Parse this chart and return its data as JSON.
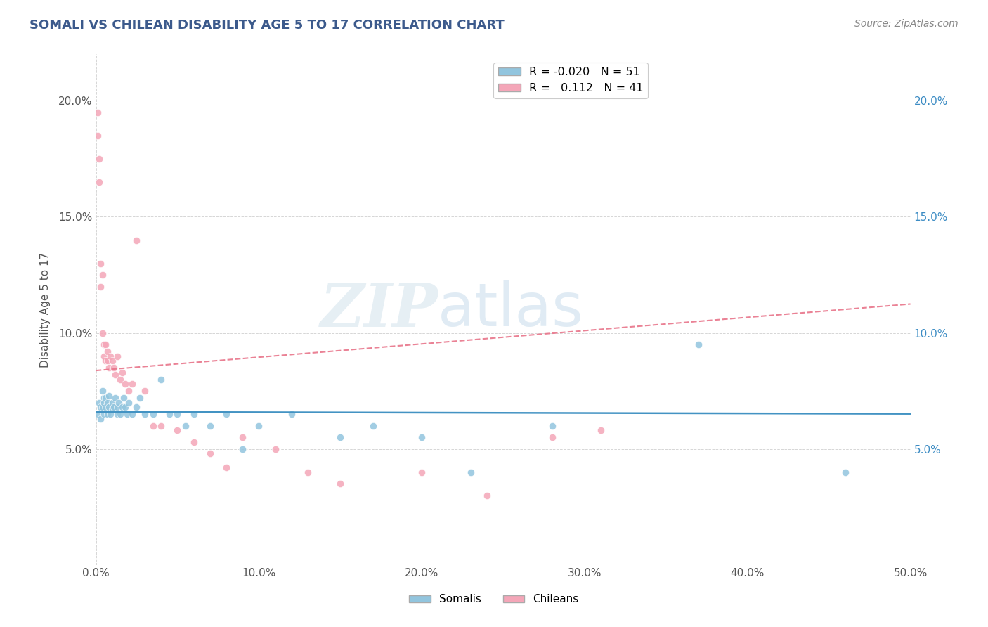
{
  "title": "SOMALI VS CHILEAN DISABILITY AGE 5 TO 17 CORRELATION CHART",
  "source_text": "Source: ZipAtlas.com",
  "ylabel": "Disability Age 5 to 17",
  "xlim": [
    0.0,
    0.5
  ],
  "ylim": [
    0.0,
    0.22
  ],
  "xticks": [
    0.0,
    0.1,
    0.2,
    0.3,
    0.4,
    0.5
  ],
  "xtick_labels": [
    "0.0%",
    "10.0%",
    "20.0%",
    "30.0%",
    "40.0%",
    "50.0%"
  ],
  "yticks": [
    0.0,
    0.05,
    0.1,
    0.15,
    0.2
  ],
  "ytick_labels_left": [
    "",
    "5.0%",
    "10.0%",
    "15.0%",
    "20.0%"
  ],
  "ytick_labels_right": [
    "",
    "5.0%",
    "10.0%",
    "15.0%",
    "20.0%"
  ],
  "somali_R": -0.02,
  "somali_N": 51,
  "chilean_R": 0.112,
  "chilean_N": 41,
  "somali_color": "#92c5de",
  "chilean_color": "#f4a6b8",
  "somali_line_color": "#4393c3",
  "chilean_line_color": "#e8748a",
  "watermark_zip": "ZIP",
  "watermark_atlas": "atlas",
  "background_color": "#ffffff",
  "grid_color": "#cccccc",
  "title_color": "#3c5a8c",
  "source_color": "#888888",
  "somali_x": [
    0.001,
    0.002,
    0.003,
    0.003,
    0.004,
    0.004,
    0.005,
    0.005,
    0.005,
    0.006,
    0.006,
    0.007,
    0.007,
    0.008,
    0.008,
    0.009,
    0.01,
    0.01,
    0.011,
    0.012,
    0.013,
    0.013,
    0.014,
    0.015,
    0.016,
    0.017,
    0.018,
    0.019,
    0.02,
    0.022,
    0.025,
    0.027,
    0.03,
    0.035,
    0.04,
    0.045,
    0.05,
    0.055,
    0.06,
    0.07,
    0.08,
    0.09,
    0.1,
    0.12,
    0.15,
    0.17,
    0.2,
    0.23,
    0.28,
    0.37,
    0.46
  ],
  "somali_y": [
    0.065,
    0.07,
    0.068,
    0.063,
    0.075,
    0.068,
    0.072,
    0.065,
    0.07,
    0.068,
    0.072,
    0.065,
    0.07,
    0.068,
    0.073,
    0.065,
    0.07,
    0.067,
    0.068,
    0.072,
    0.068,
    0.065,
    0.07,
    0.065,
    0.068,
    0.072,
    0.068,
    0.065,
    0.07,
    0.065,
    0.068,
    0.072,
    0.065,
    0.065,
    0.08,
    0.065,
    0.065,
    0.06,
    0.065,
    0.06,
    0.065,
    0.05,
    0.06,
    0.065,
    0.055,
    0.06,
    0.055,
    0.04,
    0.06,
    0.095,
    0.04
  ],
  "chilean_x": [
    0.001,
    0.001,
    0.002,
    0.002,
    0.003,
    0.003,
    0.004,
    0.004,
    0.005,
    0.005,
    0.006,
    0.006,
    0.007,
    0.007,
    0.008,
    0.009,
    0.01,
    0.011,
    0.012,
    0.013,
    0.015,
    0.016,
    0.018,
    0.02,
    0.022,
    0.025,
    0.03,
    0.035,
    0.04,
    0.05,
    0.06,
    0.07,
    0.08,
    0.09,
    0.11,
    0.13,
    0.15,
    0.2,
    0.24,
    0.28,
    0.31
  ],
  "chilean_y": [
    0.185,
    0.195,
    0.175,
    0.165,
    0.13,
    0.12,
    0.125,
    0.1,
    0.095,
    0.09,
    0.095,
    0.088,
    0.092,
    0.088,
    0.085,
    0.09,
    0.088,
    0.085,
    0.082,
    0.09,
    0.08,
    0.083,
    0.078,
    0.075,
    0.078,
    0.14,
    0.075,
    0.06,
    0.06,
    0.058,
    0.053,
    0.048,
    0.042,
    0.055,
    0.05,
    0.04,
    0.035,
    0.04,
    0.03,
    0.055,
    0.058
  ]
}
